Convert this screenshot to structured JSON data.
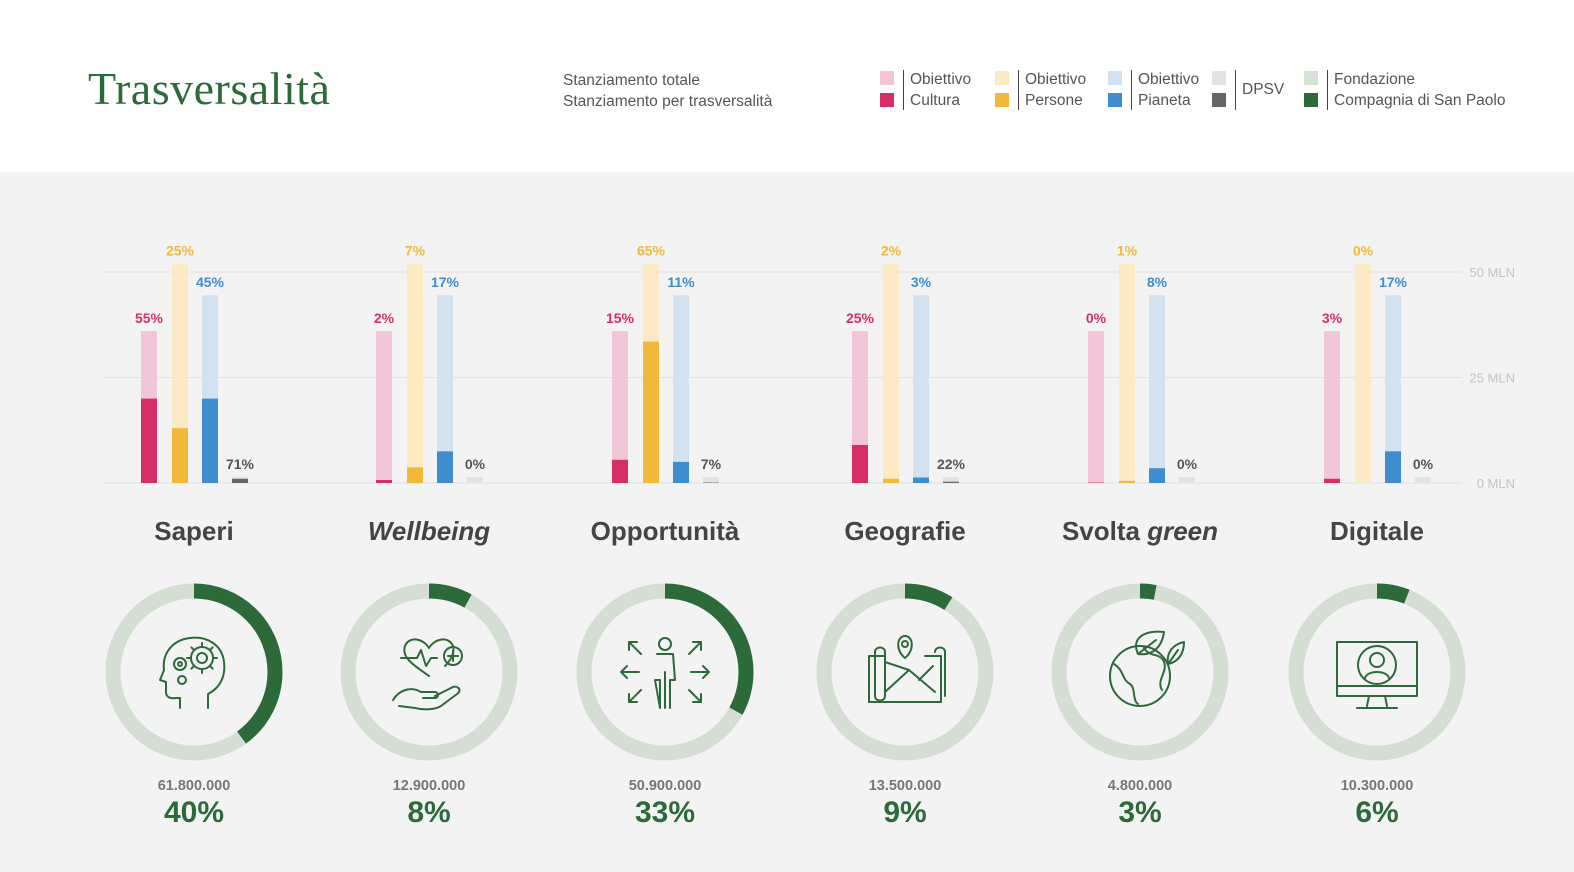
{
  "title": "Trasversalità",
  "subnote": {
    "line1": "Stanziamento totale",
    "line2": "Stanziamento per trasversalità"
  },
  "legend": [
    {
      "line1": "Obiettivo",
      "line2": "Cultura",
      "light": "#f2c6d8",
      "dark": "#d62f66"
    },
    {
      "line1": "Obiettivo",
      "line2": "Persone",
      "light": "#fbeac4",
      "dark": "#f0b93c"
    },
    {
      "line1": "Obiettivo",
      "line2": "Pianeta",
      "light": "#d3e2f1",
      "dark": "#3f8ccf"
    },
    {
      "line1": "DPSV",
      "line2": "",
      "light": "#e3e3e3",
      "dark": "#666666"
    },
    {
      "line1": "Fondazione",
      "line2": "Compagnia di San Paolo",
      "light": "#d6e2d6",
      "dark": "#2c6a3a"
    }
  ],
  "chart_data": {
    "type": "bar",
    "y_unit_labels": [
      "0 MLN",
      "25 MLN",
      "50 MLN"
    ],
    "ylim": [
      0,
      50
    ],
    "series_names": [
      "Obiettivo Cultura",
      "Obiettivo Persone",
      "Obiettivo Pianeta",
      "DPSV"
    ],
    "series_colors": {
      "light": [
        "#f2c6d8",
        "#fbeac4",
        "#d3e2f1",
        "#e3e3e3"
      ],
      "dark": [
        "#d62f66",
        "#f0b93c",
        "#3f8ccf",
        "#666666"
      ],
      "label": [
        "#d62f66",
        "#f0b93c",
        "#3f8ccf",
        "#555555"
      ]
    },
    "totals_mln": [
      36,
      52,
      44.5,
      1.4
    ],
    "categories": [
      {
        "name": "Saperi",
        "italic": [
          false
        ],
        "amount": "61.800.000",
        "share": "40%",
        "share_value": 0.4,
        "icon": "head-gears-icon",
        "bars": [
          {
            "pct_label": "55%",
            "value_mln": 20
          },
          {
            "pct_label": "25%",
            "value_mln": 13
          },
          {
            "pct_label": "45%",
            "value_mln": 20
          },
          {
            "pct_label": "71%",
            "value_mln": 1.0
          }
        ]
      },
      {
        "name": "Wellbeing",
        "italic": [
          true
        ],
        "amount": "12.900.000",
        "share": "8%",
        "share_value": 0.08,
        "icon": "heart-hand-icon",
        "bars": [
          {
            "pct_label": "2%",
            "value_mln": 0.7
          },
          {
            "pct_label": "7%",
            "value_mln": 3.7
          },
          {
            "pct_label": "17%",
            "value_mln": 7.5
          },
          {
            "pct_label": "0%",
            "value_mln": 0
          }
        ]
      },
      {
        "name": "Opportunità",
        "italic": [
          false
        ],
        "amount": "50.900.000",
        "share": "33%",
        "share_value": 0.33,
        "icon": "person-arrows-icon",
        "bars": [
          {
            "pct_label": "15%",
            "value_mln": 5.5
          },
          {
            "pct_label": "65%",
            "value_mln": 33.5
          },
          {
            "pct_label": "11%",
            "value_mln": 5.0
          },
          {
            "pct_label": "7%",
            "value_mln": 0.1
          }
        ]
      },
      {
        "name": "Geografie",
        "italic": [
          false
        ],
        "amount": "13.500.000",
        "share": "9%",
        "share_value": 0.09,
        "icon": "map-pin-icon",
        "bars": [
          {
            "pct_label": "25%",
            "value_mln": 9.0
          },
          {
            "pct_label": "2%",
            "value_mln": 1.0
          },
          {
            "pct_label": "3%",
            "value_mln": 1.3
          },
          {
            "pct_label": "22%",
            "value_mln": 0.3
          }
        ]
      },
      {
        "name": "Svolta green",
        "italic": [
          false,
          true
        ],
        "name_parts": [
          "Svolta ",
          "green"
        ],
        "amount": "4.800.000",
        "share": "3%",
        "share_value": 0.03,
        "icon": "earth-leaves-icon",
        "bars": [
          {
            "pct_label": "0%",
            "value_mln": 0.1
          },
          {
            "pct_label": "1%",
            "value_mln": 0.5
          },
          {
            "pct_label": "8%",
            "value_mln": 3.5
          },
          {
            "pct_label": "0%",
            "value_mln": 0
          }
        ]
      },
      {
        "name": "Digitale",
        "italic": [
          false
        ],
        "amount": "10.300.000",
        "share": "6%",
        "share_value": 0.06,
        "icon": "monitor-user-icon",
        "bars": [
          {
            "pct_label": "3%",
            "value_mln": 1.0
          },
          {
            "pct_label": "0%",
            "value_mln": 0
          },
          {
            "pct_label": "17%",
            "value_mln": 7.5
          },
          {
            "pct_label": "0%",
            "value_mln": 0
          }
        ]
      }
    ]
  }
}
